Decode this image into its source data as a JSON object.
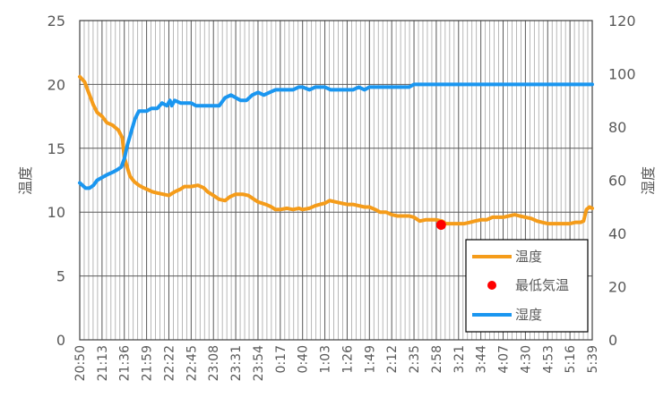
{
  "chart_data": {
    "type": "line",
    "title": "",
    "x_ticks": [
      "20:50",
      "21:13",
      "21:36",
      "21:59",
      "22:22",
      "22:45",
      "23:08",
      "23:31",
      "23:54",
      "0:17",
      "0:40",
      "1:03",
      "1:26",
      "1:49",
      "2:12",
      "2:35",
      "2:58",
      "3:21",
      "3:44",
      "4:07",
      "4:30",
      "4:53",
      "5:16",
      "5:39"
    ],
    "y_left": {
      "label": "温度",
      "min": 0,
      "max": 25,
      "step": 5,
      "ticks": [
        "0",
        "5",
        "10",
        "15",
        "20",
        "25"
      ]
    },
    "y_right": {
      "label": "湿度",
      "min": 0,
      "max": 120,
      "step": 20,
      "ticks": [
        "0",
        "20",
        "40",
        "60",
        "80",
        "100",
        "120"
      ]
    },
    "grid": true,
    "legend_position": "bottom-right",
    "series": [
      {
        "name": "温度",
        "axis": "left",
        "color": "#F59C1A",
        "kind": "line",
        "points": [
          [
            "20:50",
            20.6
          ],
          [
            "20:55",
            20.2
          ],
          [
            "21:00",
            19.2
          ],
          [
            "21:04",
            18.4
          ],
          [
            "21:08",
            17.8
          ],
          [
            "21:13",
            17.5
          ],
          [
            "21:18",
            17.0
          ],
          [
            "21:24",
            16.8
          ],
          [
            "21:30",
            16.4
          ],
          [
            "21:34",
            15.8
          ],
          [
            "21:36",
            14.3
          ],
          [
            "21:39",
            13.5
          ],
          [
            "21:42",
            12.8
          ],
          [
            "21:46",
            12.4
          ],
          [
            "21:51",
            12.1
          ],
          [
            "21:56",
            11.9
          ],
          [
            "21:59",
            11.8
          ],
          [
            "22:05",
            11.6
          ],
          [
            "22:10",
            11.5
          ],
          [
            "22:16",
            11.4
          ],
          [
            "22:22",
            11.3
          ],
          [
            "22:28",
            11.6
          ],
          [
            "22:34",
            11.8
          ],
          [
            "22:38",
            12.0
          ],
          [
            "22:45",
            12.0
          ],
          [
            "22:52",
            12.1
          ],
          [
            "22:58",
            11.9
          ],
          [
            "23:02",
            11.6
          ],
          [
            "23:08",
            11.3
          ],
          [
            "23:14",
            11.0
          ],
          [
            "23:20",
            10.9
          ],
          [
            "23:25",
            11.2
          ],
          [
            "23:31",
            11.4
          ],
          [
            "23:38",
            11.4
          ],
          [
            "23:44",
            11.3
          ],
          [
            "23:50",
            11.0
          ],
          [
            "23:54",
            10.8
          ],
          [
            "0:02",
            10.6
          ],
          [
            "0:08",
            10.4
          ],
          [
            "0:12",
            10.2
          ],
          [
            "0:17",
            10.2
          ],
          [
            "0:24",
            10.3
          ],
          [
            "0:30",
            10.2
          ],
          [
            "0:36",
            10.3
          ],
          [
            "0:40",
            10.2
          ],
          [
            "0:47",
            10.3
          ],
          [
            "0:53",
            10.5
          ],
          [
            "0:58",
            10.6
          ],
          [
            "1:03",
            10.7
          ],
          [
            "1:08",
            10.9
          ],
          [
            "1:14",
            10.8
          ],
          [
            "1:20",
            10.7
          ],
          [
            "1:26",
            10.6
          ],
          [
            "1:32",
            10.6
          ],
          [
            "1:38",
            10.5
          ],
          [
            "1:44",
            10.4
          ],
          [
            "1:49",
            10.4
          ],
          [
            "1:55",
            10.2
          ],
          [
            "2:00",
            10.0
          ],
          [
            "2:06",
            10.0
          ],
          [
            "2:12",
            9.8
          ],
          [
            "2:18",
            9.7
          ],
          [
            "2:24",
            9.7
          ],
          [
            "2:30",
            9.7
          ],
          [
            "2:35",
            9.6
          ],
          [
            "2:41",
            9.3
          ],
          [
            "2:47",
            9.4
          ],
          [
            "2:53",
            9.4
          ],
          [
            "2:58",
            9.4
          ],
          [
            "3:04",
            9.3
          ],
          [
            "3:08",
            9.1
          ],
          [
            "3:13",
            9.1
          ],
          [
            "3:21",
            9.1
          ],
          [
            "3:27",
            9.1
          ],
          [
            "3:33",
            9.2
          ],
          [
            "3:38",
            9.3
          ],
          [
            "3:44",
            9.4
          ],
          [
            "3:50",
            9.4
          ],
          [
            "3:56",
            9.6
          ],
          [
            "4:01",
            9.6
          ],
          [
            "4:07",
            9.6
          ],
          [
            "4:13",
            9.7
          ],
          [
            "4:19",
            9.8
          ],
          [
            "4:24",
            9.7
          ],
          [
            "4:30",
            9.6
          ],
          [
            "4:36",
            9.5
          ],
          [
            "4:42",
            9.3
          ],
          [
            "4:47",
            9.2
          ],
          [
            "4:53",
            9.1
          ],
          [
            "4:59",
            9.1
          ],
          [
            "5:04",
            9.1
          ],
          [
            "5:10",
            9.1
          ],
          [
            "5:16",
            9.1
          ],
          [
            "5:22",
            9.2
          ],
          [
            "5:27",
            9.2
          ],
          [
            "5:30",
            9.3
          ],
          [
            "5:33",
            10.2
          ],
          [
            "5:36",
            10.4
          ],
          [
            "5:39",
            10.3
          ]
        ]
      },
      {
        "name": "最低気温",
        "axis": "left",
        "color": "#FF0000",
        "kind": "point",
        "points": [
          [
            "3:03",
            9.0
          ]
        ]
      },
      {
        "name": "湿度",
        "axis": "right",
        "color": "#1A96F0",
        "kind": "line",
        "points": [
          [
            "20:50",
            59
          ],
          [
            "20:53",
            58
          ],
          [
            "20:56",
            57
          ],
          [
            "21:00",
            57
          ],
          [
            "21:04",
            58
          ],
          [
            "21:08",
            60
          ],
          [
            "21:13",
            61
          ],
          [
            "21:18",
            62
          ],
          [
            "21:24",
            63
          ],
          [
            "21:29",
            64
          ],
          [
            "21:33",
            65
          ],
          [
            "21:36",
            68
          ],
          [
            "21:39",
            73
          ],
          [
            "21:43",
            78
          ],
          [
            "21:47",
            83
          ],
          [
            "21:51",
            86
          ],
          [
            "21:55",
            86
          ],
          [
            "21:59",
            86
          ],
          [
            "22:04",
            87
          ],
          [
            "22:10",
            87
          ],
          [
            "22:15",
            89
          ],
          [
            "22:20",
            88
          ],
          [
            "22:23",
            90
          ],
          [
            "22:25",
            88
          ],
          [
            "22:28",
            90
          ],
          [
            "22:34",
            89
          ],
          [
            "22:40",
            89
          ],
          [
            "22:45",
            89
          ],
          [
            "22:50",
            88
          ],
          [
            "22:56",
            88
          ],
          [
            "23:02",
            88
          ],
          [
            "23:08",
            88
          ],
          [
            "23:14",
            88
          ],
          [
            "23:20",
            91
          ],
          [
            "23:26",
            92
          ],
          [
            "23:31",
            91
          ],
          [
            "23:36",
            90
          ],
          [
            "23:42",
            90
          ],
          [
            "23:48",
            92
          ],
          [
            "23:54",
            93
          ],
          [
            "0:00",
            92
          ],
          [
            "0:06",
            93
          ],
          [
            "0:12",
            94
          ],
          [
            "0:17",
            94
          ],
          [
            "0:24",
            94
          ],
          [
            "0:30",
            94
          ],
          [
            "0:36",
            95
          ],
          [
            "0:40",
            95
          ],
          [
            "0:47",
            94
          ],
          [
            "0:53",
            95
          ],
          [
            "0:58",
            95
          ],
          [
            "1:03",
            95
          ],
          [
            "1:09",
            94
          ],
          [
            "1:15",
            94
          ],
          [
            "1:20",
            94
          ],
          [
            "1:26",
            94
          ],
          [
            "1:32",
            94
          ],
          [
            "1:38",
            95
          ],
          [
            "1:44",
            94
          ],
          [
            "1:49",
            95
          ],
          [
            "1:55",
            95
          ],
          [
            "2:00",
            95
          ],
          [
            "2:06",
            95
          ],
          [
            "2:12",
            95
          ],
          [
            "2:18",
            95
          ],
          [
            "2:24",
            95
          ],
          [
            "2:30",
            95
          ],
          [
            "2:35",
            96
          ],
          [
            "2:45",
            96
          ],
          [
            "2:58",
            96
          ],
          [
            "3:21",
            96
          ],
          [
            "3:44",
            96
          ],
          [
            "4:07",
            96
          ],
          [
            "4:30",
            96
          ],
          [
            "4:53",
            96
          ],
          [
            "5:16",
            96
          ],
          [
            "5:39",
            96
          ]
        ]
      }
    ]
  }
}
